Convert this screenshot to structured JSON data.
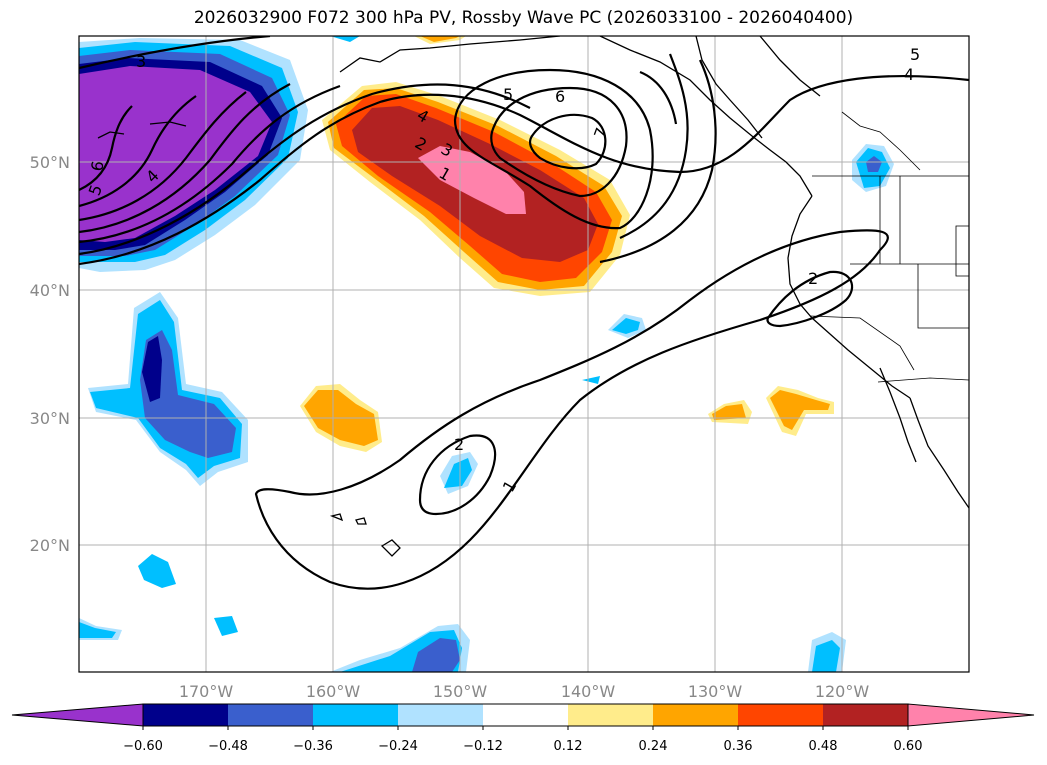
{
  "title": "2026032900 F072 300 hPa PV, Rossby Wave PC (2026033100 - 2026040400)",
  "map": {
    "lat_labels": [
      "50°N",
      "40°N",
      "30°N",
      "20°N"
    ],
    "lon_labels": [
      "170°W",
      "160°W",
      "150°W",
      "140°W",
      "130°W",
      "120°W"
    ]
  },
  "contour_labels": [
    "3",
    "6",
    "5",
    "4",
    "5",
    "6",
    "7",
    "4",
    "2",
    "3",
    "1",
    "5",
    "4",
    "2",
    "2",
    "1"
  ],
  "colorbar": {
    "ticks": [
      "−0.60",
      "−0.48",
      "−0.36",
      "−0.24",
      "−0.12",
      "0.12",
      "0.24",
      "0.36",
      "0.48",
      "0.60"
    ],
    "colors": [
      "#9932cc",
      "#00008b",
      "#3a5fcd",
      "#00bfff",
      "#b0e2ff",
      "#ffffff",
      "#ffec8b",
      "#ffa500",
      "#ff4500",
      "#b22222",
      "#ff82ab"
    ]
  }
}
